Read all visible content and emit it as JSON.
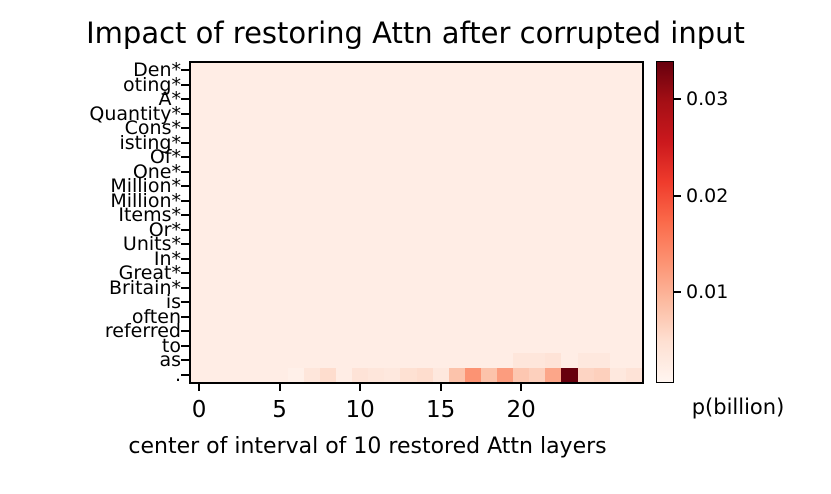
{
  "title": "Impact of restoring Attn after corrupted input",
  "chart_data": {
    "type": "heatmap",
    "title": "Impact of restoring Attn after corrupted input",
    "xlabel": "center of interval of 10 restored Attn layers",
    "colorbar_label": "p(billion)",
    "colormap": "Reds",
    "legend_position": "right-colorbar",
    "grid": false,
    "n_cols": 28,
    "x_range": [
      -0.5,
      27.5
    ],
    "x_ticks": [
      0,
      5,
      10,
      15,
      20
    ],
    "y_labels": [
      "Den*",
      "oting*",
      "A*",
      "Quantity*",
      "Cons*",
      "isting*",
      "Of*",
      "One*",
      "Million*",
      "Million*",
      "Items*",
      "Or*",
      "Units*",
      "In*",
      "Great*",
      "Britain*",
      "is",
      "often",
      "referred",
      "to",
      "as",
      "."
    ],
    "colorbar_ticks": [
      0.01,
      0.02,
      0.03
    ],
    "vmin": 0.0005,
    "vmax": 0.034,
    "baseline_value": 0.002,
    "row_values": {
      "20": [
        0.002,
        0.002,
        0.002,
        0.002,
        0.002,
        0.002,
        0.002,
        0.002,
        0.002,
        0.002,
        0.002,
        0.002,
        0.002,
        0.002,
        0.002,
        0.002,
        0.002,
        0.002,
        0.002,
        0.002,
        0.0035,
        0.0035,
        0.004,
        0.002,
        0.003,
        0.003,
        0.002,
        0.002
      ],
      "21": [
        0.002,
        0.002,
        0.002,
        0.002,
        0.002,
        0.002,
        0.0015,
        0.0035,
        0.005,
        0.002,
        0.004,
        0.0035,
        0.003,
        0.0045,
        0.005,
        0.003,
        0.008,
        0.013,
        0.008,
        0.012,
        0.0075,
        0.0065,
        0.011,
        0.034,
        0.006,
        0.0065,
        0.003,
        0.004
      ]
    },
    "reds_colormap_anchors": [
      "#fff5f0",
      "#fee0d2",
      "#fcbba1",
      "#fc9272",
      "#fb6a4a",
      "#ef3b2c",
      "#cb181d",
      "#a50f15",
      "#67000d"
    ]
  }
}
